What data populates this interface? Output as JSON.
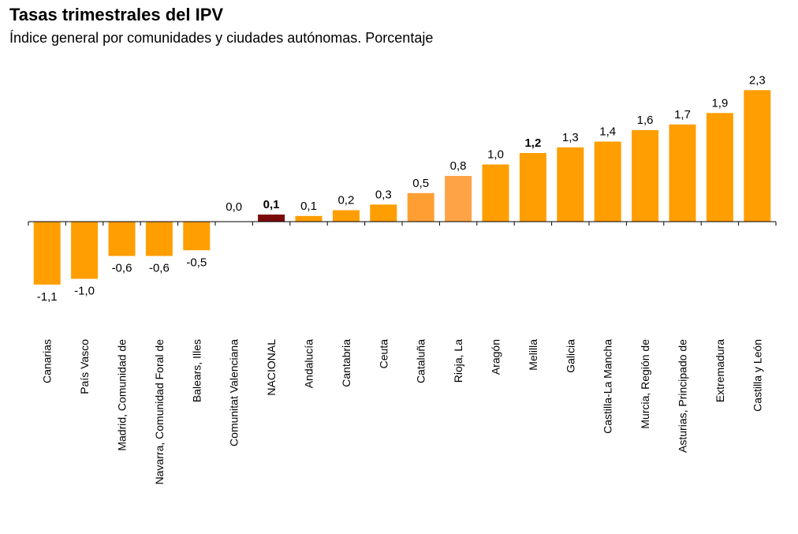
{
  "title": "Tasas trimestrales del IPV",
  "subtitle": "Índice general por comunidades y ciudades autónomas. Porcentaje",
  "chart_data": {
    "type": "bar",
    "categories": [
      "Canarias",
      "País Vasco",
      "Madrid, Comunidad de",
      "Navarra, Comunidad Foral de",
      "Balears, Illes",
      "Comunitat Valenciana",
      "NACIONAL",
      "Andalucía",
      "Cantabria",
      "Ceuta",
      "Cataluña",
      "Rioja, La",
      "Aragón",
      "Melilla",
      "Galicia",
      "Castilla-La Mancha",
      "Murcia, Región de",
      "Asturias, Principado de",
      "Extremadura",
      "Castilla y León"
    ],
    "values": [
      -1.1,
      -1.0,
      -0.6,
      -0.6,
      -0.5,
      0.0,
      0.1,
      0.1,
      0.2,
      0.3,
      0.5,
      0.8,
      1.0,
      1.2,
      1.3,
      1.4,
      1.6,
      1.7,
      1.9,
      2.3
    ],
    "value_labels": [
      "-1,1",
      "-1,0",
      "-0,6",
      "-0,6",
      "-0,5",
      "0,0",
      "0,1",
      "0,1",
      "0,2",
      "0,3",
      "0,5",
      "0,8",
      "1,0",
      "1,2",
      "1,3",
      "1,4",
      "1,6",
      "1,7",
      "1,9",
      "2,3"
    ],
    "bold_labels": [
      "NACIONAL",
      "Melilla"
    ],
    "colors": {
      "default": "#FF9E00",
      "highlight_nacional": "#7B0A0A",
      "cataluna": "#FF9F33",
      "rioja": "#FFA347"
    },
    "highlight_category": "NACIONAL",
    "grid": false,
    "legend": "none"
  }
}
